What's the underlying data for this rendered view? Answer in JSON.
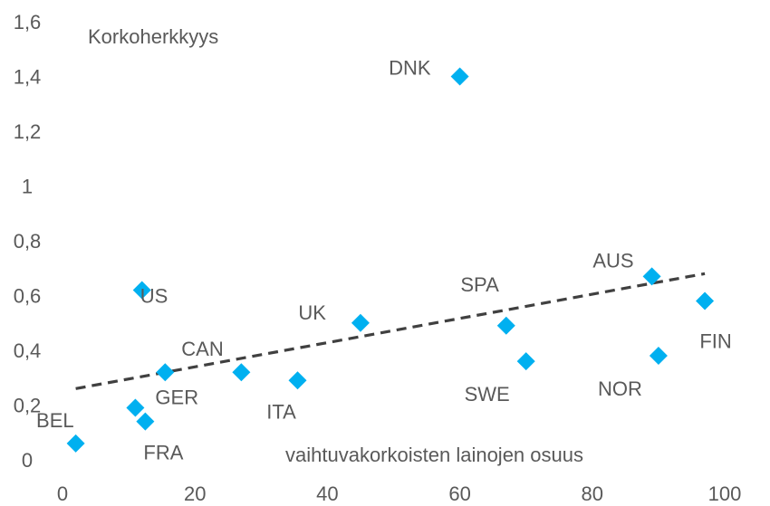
{
  "chart_data": {
    "type": "scatter",
    "ylabel": "Korkoherkkyys",
    "xlabel": "vaihtuvakorkoisten lainojen osuus",
    "xlim": [
      0,
      100
    ],
    "ylim": [
      0,
      1.6
    ],
    "x_ticks": [
      "0",
      "20",
      "40",
      "60",
      "80",
      "100"
    ],
    "y_ticks": [
      "0",
      "0,2",
      "0,4",
      "0,6",
      "0,8",
      "1",
      "1,2",
      "1,4",
      "1,6"
    ],
    "grid": false,
    "marker": "diamond",
    "marker_color": "#00b0f0",
    "trendline": {
      "style": "dashed",
      "color": "#404040",
      "from": [
        2,
        0.26
      ],
      "to": [
        97,
        0.68
      ]
    },
    "points": [
      {
        "label": "BEL",
        "x": 2,
        "y": 0.06
      },
      {
        "label": "FRA",
        "x": 12.5,
        "y": 0.14
      },
      {
        "label": "GER",
        "x": 11,
        "y": 0.19
      },
      {
        "label": "US",
        "x": 12,
        "y": 0.62
      },
      {
        "label": "CAN",
        "x": 15.5,
        "y": 0.32
      },
      {
        "label": "",
        "x": 27,
        "y": 0.32
      },
      {
        "label": "ITA",
        "x": 35.5,
        "y": 0.29
      },
      {
        "label": "UK",
        "x": 45,
        "y": 0.5
      },
      {
        "label": "DNK",
        "x": 60,
        "y": 1.4
      },
      {
        "label": "SPA",
        "x": 67,
        "y": 0.49
      },
      {
        "label": "SWE",
        "x": 70,
        "y": 0.36
      },
      {
        "label": "AUS",
        "x": 89,
        "y": 0.67
      },
      {
        "label": "NOR",
        "x": 90,
        "y": 0.38
      },
      {
        "label": "FIN",
        "x": 97,
        "y": 0.58
      }
    ]
  }
}
